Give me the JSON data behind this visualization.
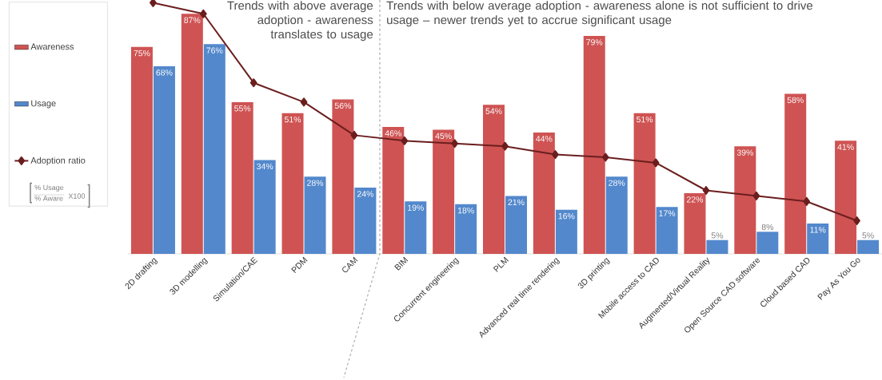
{
  "chart_data": {
    "type": "bar",
    "categories": [
      "2D drafting",
      "3D modelling",
      "Simulation/CAE",
      "PDM",
      "CAM",
      "BIM",
      "Concurrent engineering",
      "PLM",
      "Advanced real time rendering",
      "3D printing",
      "Mobile access to CAD",
      "Augmented/Virtual Reality",
      "Open Source CAD software",
      "Cloud based CAD",
      "Pay As You Go"
    ],
    "series": [
      {
        "name": "Awareness",
        "color": "#cf5353",
        "values": [
          75,
          87,
          55,
          51,
          56,
          46,
          45,
          54,
          44,
          79,
          51,
          22,
          39,
          58,
          41
        ],
        "value_labels": [
          "75%",
          "87%",
          "55%",
          "51%",
          "56%",
          "46%",
          "45%",
          "54%",
          "44%",
          "79%",
          "51%",
          "22%",
          "39%",
          "58%",
          "41%"
        ]
      },
      {
        "name": "Usage",
        "color": "#5388cc",
        "values": [
          68,
          76,
          34,
          28,
          24,
          19,
          18,
          21,
          16,
          28,
          17,
          5,
          8,
          11,
          5
        ],
        "value_labels": [
          "68%",
          "76%",
          "34%",
          "28%",
          "24%",
          "19%",
          "18%",
          "21%",
          "16%",
          "28%",
          "17%",
          "5%",
          "8%",
          "11%",
          "5%"
        ]
      },
      {
        "name": "Adoption ratio",
        "type": "line",
        "color": "#6b1e1e",
        "values": [
          91,
          87,
          62,
          55,
          43,
          41,
          40,
          39,
          36,
          35,
          33,
          23,
          21,
          19,
          12
        ]
      }
    ],
    "marker": "diamond",
    "ylim": [
      0,
      92
    ],
    "legend": "left",
    "annotations": [
      "Trends with above average adoption - awareness translates to usage",
      "Trends with below average adoption - awareness alone is not sufficient to drive usage – newer trends yet to accrue significant usage",
      "% Usage",
      "% Aware",
      "X100"
    ]
  }
}
